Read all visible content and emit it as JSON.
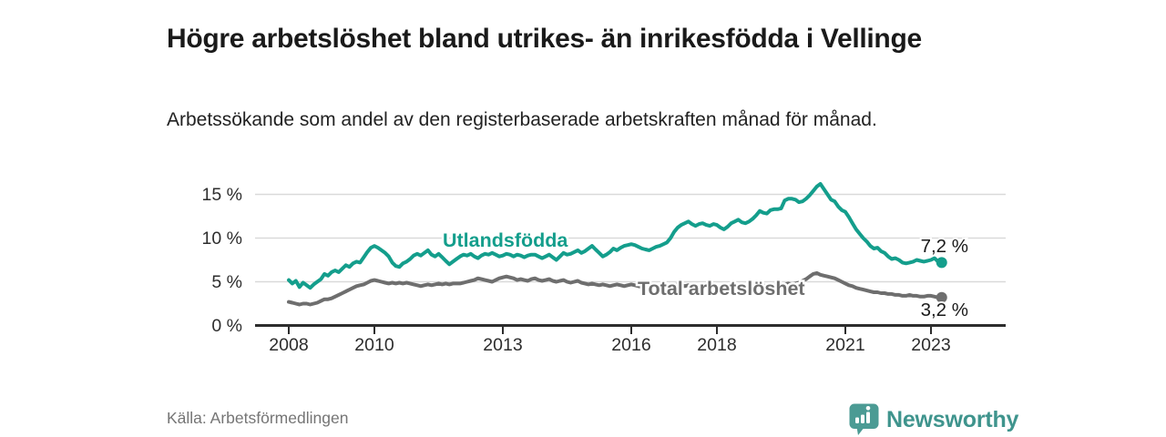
{
  "header": {
    "title": "Högre arbetslöshet bland utrikes- än inrikesfödda i Vellinge",
    "subtitle": "Arbetssökande som andel av den registerbaserade arbetskraften månad för månad."
  },
  "chart_data": {
    "type": "line",
    "unit": "%",
    "frequency": "monthly",
    "x_start": "2008-01",
    "x_end": "2023-04",
    "grid": true,
    "ylim": [
      0,
      17
    ],
    "y_ticks": [
      {
        "value": 0,
        "label": "0 %"
      },
      {
        "value": 5,
        "label": "5 %"
      },
      {
        "value": 10,
        "label": "10 %"
      },
      {
        "value": 15,
        "label": "15 %"
      }
    ],
    "x_ticks": [
      {
        "year": 2008,
        "label": "2008"
      },
      {
        "year": 2010,
        "label": "2010"
      },
      {
        "year": 2013,
        "label": "2013"
      },
      {
        "year": 2016,
        "label": "2016"
      },
      {
        "year": 2018,
        "label": "2018"
      },
      {
        "year": 2021,
        "label": "2021"
      },
      {
        "year": 2023,
        "label": "2023"
      }
    ],
    "series": [
      {
        "name": "Total arbetslöshet",
        "color": "#6e6e6e",
        "end_label": "3,2 %",
        "values": [
          2.7,
          2.6,
          2.5,
          2.4,
          2.5,
          2.5,
          2.4,
          2.5,
          2.6,
          2.8,
          3.0,
          3.0,
          3.1,
          3.3,
          3.5,
          3.7,
          3.9,
          4.1,
          4.3,
          4.5,
          4.6,
          4.7,
          4.9,
          5.1,
          5.2,
          5.1,
          5.0,
          4.9,
          4.8,
          4.9,
          4.8,
          4.9,
          4.8,
          4.9,
          4.8,
          4.7,
          4.6,
          4.5,
          4.6,
          4.7,
          4.6,
          4.7,
          4.8,
          4.7,
          4.8,
          4.7,
          4.8,
          4.8,
          4.8,
          4.9,
          5.0,
          5.1,
          5.2,
          5.4,
          5.3,
          5.2,
          5.1,
          5.0,
          5.2,
          5.4,
          5.5,
          5.6,
          5.5,
          5.4,
          5.2,
          5.3,
          5.2,
          5.1,
          5.3,
          5.4,
          5.2,
          5.1,
          5.2,
          5.3,
          5.1,
          5.0,
          5.1,
          5.2,
          5.0,
          4.9,
          5.0,
          5.1,
          4.9,
          4.8,
          4.7,
          4.8,
          4.7,
          4.6,
          4.7,
          4.6,
          4.5,
          4.6,
          4.7,
          4.6,
          4.5,
          4.6,
          4.7,
          4.6,
          4.5,
          4.4,
          4.5,
          4.6,
          4.5,
          4.4,
          4.5,
          4.6,
          4.5,
          4.6,
          4.6,
          4.7,
          4.6,
          4.5,
          4.6,
          4.5,
          4.4,
          4.5,
          4.6,
          4.5,
          4.4,
          4.5,
          4.5,
          4.4,
          4.3,
          4.4,
          4.5,
          4.4,
          4.5,
          4.4,
          4.5,
          4.4,
          4.5,
          4.6,
          4.6,
          4.5,
          4.6,
          4.5,
          4.6,
          4.7,
          4.6,
          4.7,
          4.8,
          4.7,
          4.8,
          4.9,
          5.1,
          5.3,
          5.6,
          5.9,
          6.0,
          5.8,
          5.7,
          5.6,
          5.5,
          5.4,
          5.2,
          5.0,
          4.8,
          4.6,
          4.5,
          4.3,
          4.2,
          4.1,
          4.0,
          3.9,
          3.8,
          3.8,
          3.7,
          3.7,
          3.6,
          3.6,
          3.5,
          3.5,
          3.4,
          3.4,
          3.5,
          3.4,
          3.4,
          3.3,
          3.3,
          3.4,
          3.4,
          3.3,
          3.2,
          3.2
        ]
      },
      {
        "name": "Utlandsfödda",
        "color": "#149E8C",
        "end_label": "7,2 %",
        "values": [
          5.2,
          4.8,
          5.1,
          4.4,
          4.9,
          4.6,
          4.3,
          4.7,
          5.0,
          5.3,
          5.9,
          5.7,
          6.1,
          6.3,
          6.1,
          6.5,
          6.9,
          6.7,
          7.1,
          7.3,
          7.2,
          7.8,
          8.4,
          8.9,
          9.1,
          8.9,
          8.6,
          8.3,
          7.9,
          7.2,
          6.8,
          6.7,
          7.1,
          7.3,
          7.6,
          8.0,
          8.2,
          8.0,
          8.3,
          8.6,
          8.1,
          7.9,
          8.2,
          7.8,
          7.4,
          7.0,
          7.3,
          7.6,
          7.9,
          8.1,
          8.0,
          8.2,
          7.9,
          7.7,
          8.0,
          8.2,
          8.1,
          8.3,
          8.1,
          7.9,
          8.0,
          8.2,
          8.1,
          7.9,
          8.1,
          8.0,
          7.8,
          8.0,
          8.1,
          8.1,
          7.9,
          7.7,
          7.9,
          8.1,
          7.8,
          7.5,
          7.9,
          8.3,
          8.1,
          8.2,
          8.4,
          8.6,
          8.3,
          8.5,
          8.8,
          9.1,
          8.7,
          8.3,
          7.9,
          8.1,
          8.4,
          8.8,
          8.6,
          8.9,
          9.1,
          9.2,
          9.3,
          9.2,
          9.0,
          8.8,
          8.7,
          8.6,
          8.8,
          9.0,
          9.1,
          9.3,
          9.5,
          10.0,
          10.7,
          11.2,
          11.5,
          11.7,
          11.9,
          11.6,
          11.4,
          11.6,
          11.7,
          11.5,
          11.4,
          11.6,
          11.5,
          11.2,
          11.0,
          11.3,
          11.7,
          11.9,
          12.1,
          11.8,
          11.7,
          11.9,
          12.2,
          12.6,
          13.1,
          12.9,
          12.8,
          13.2,
          13.3,
          13.3,
          13.4,
          14.3,
          14.5,
          14.5,
          14.4,
          14.1,
          14.2,
          14.5,
          14.9,
          15.4,
          15.9,
          16.2,
          15.6,
          15.0,
          14.4,
          14.2,
          13.6,
          13.2,
          13.0,
          12.4,
          11.7,
          11.0,
          10.5,
          10.0,
          9.6,
          9.1,
          8.8,
          8.9,
          8.5,
          8.3,
          7.9,
          7.6,
          7.7,
          7.5,
          7.2,
          7.1,
          7.2,
          7.3,
          7.5,
          7.4,
          7.3,
          7.4,
          7.5,
          7.7,
          7.3,
          7.2
        ]
      }
    ]
  },
  "colors": {
    "accent_teal": "#149E8C",
    "line_gray": "#6e6e6e",
    "grid": "#d9d9d9",
    "axis": "#2d2d2d",
    "text_dark": "#1a1a1a",
    "muted": "#757575",
    "brand_teal": "#4B9B94"
  },
  "footer": {
    "source": "Källa: Arbetsförmedlingen",
    "brand": "Newsworthy"
  }
}
